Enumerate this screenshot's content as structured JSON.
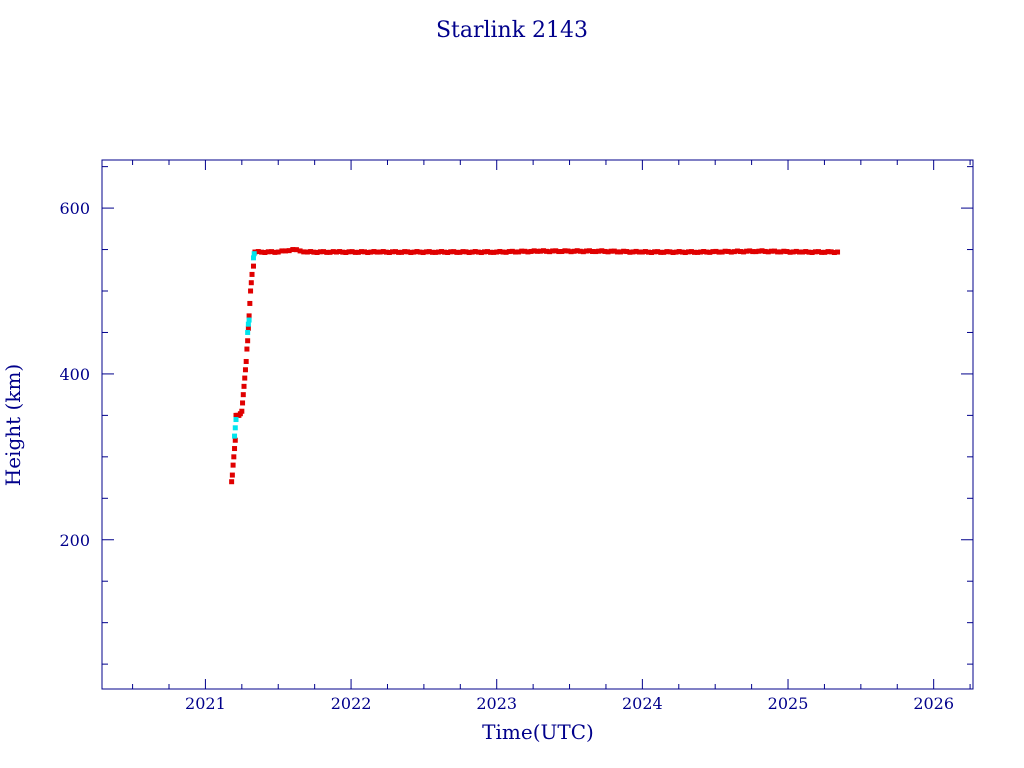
{
  "chart_data": {
    "type": "scatter",
    "title": "Starlink 2143",
    "xlabel": "Time(UTC)",
    "ylabel": "Height (km)",
    "xlim": [
      2020.29,
      2026.27
    ],
    "ylim": [
      20,
      658
    ],
    "x_ticks": [
      2021,
      2022,
      2023,
      2024,
      2025,
      2026
    ],
    "y_ticks": [
      200,
      400,
      600
    ],
    "y_minor_step": 50,
    "x_minor_step": 0.25,
    "grid": false,
    "colors": {
      "axis": "#00008b",
      "text": "#00008b",
      "primary_series": "#e00000",
      "secondary_series": "#00e5ee"
    },
    "series": [
      {
        "points": [
          [
            2021.18,
            270
          ],
          [
            2021.185,
            278
          ],
          [
            2021.19,
            290
          ],
          [
            2021.195,
            300
          ],
          [
            2021.2,
            310
          ],
          [
            2021.205,
            320
          ],
          [
            2021.21,
            350
          ],
          [
            2021.22,
            350
          ],
          [
            2021.23,
            350
          ],
          [
            2021.24,
            352
          ],
          [
            2021.25,
            355
          ],
          [
            2021.255,
            365
          ],
          [
            2021.26,
            375
          ],
          [
            2021.265,
            385
          ],
          [
            2021.27,
            395
          ],
          [
            2021.275,
            405
          ],
          [
            2021.28,
            415
          ],
          [
            2021.285,
            430
          ],
          [
            2021.29,
            440
          ],
          [
            2021.295,
            455
          ],
          [
            2021.3,
            470
          ],
          [
            2021.305,
            485
          ],
          [
            2021.31,
            500
          ],
          [
            2021.315,
            510
          ],
          [
            2021.32,
            520
          ],
          [
            2021.33,
            530
          ],
          [
            2021.34,
            547
          ],
          [
            2021.5,
            547
          ],
          [
            2021.6,
            550
          ],
          [
            2021.7,
            547
          ],
          [
            2021.9,
            547
          ],
          [
            2022.2,
            547
          ],
          [
            2022.6,
            547
          ],
          [
            2023.0,
            547
          ],
          [
            2023.3,
            548
          ],
          [
            2023.7,
            548
          ],
          [
            2024.0,
            547
          ],
          [
            2024.4,
            547
          ],
          [
            2024.8,
            548
          ],
          [
            2025.1,
            547
          ],
          [
            2025.34,
            547
          ]
        ]
      },
      {
        "points": [
          [
            2021.2,
            325
          ],
          [
            2021.205,
            335
          ],
          [
            2021.21,
            345
          ],
          [
            2021.29,
            450
          ],
          [
            2021.295,
            460
          ],
          [
            2021.3,
            465
          ],
          [
            2021.33,
            540
          ],
          [
            2021.335,
            545
          ]
        ]
      }
    ]
  }
}
